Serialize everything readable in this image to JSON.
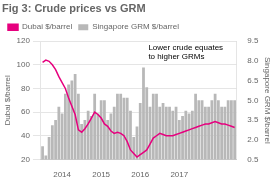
{
  "chart_data": {
    "type": "bar",
    "title": "Fig 3: Crude prices vs GRM",
    "ylabel": "Dubai $/barrel",
    "y2label": "Singapore GRM $/barrel",
    "categories": [
      null,
      null,
      null,
      null,
      null,
      null,
      "2014",
      null,
      null,
      null,
      null,
      null,
      null,
      null,
      null,
      null,
      null,
      null,
      "2015",
      null,
      null,
      null,
      null,
      null,
      null,
      null,
      null,
      null,
      null,
      null,
      "2016",
      null,
      null,
      null,
      null,
      null,
      null,
      null,
      null,
      null,
      null,
      null,
      "2017",
      null,
      null,
      null,
      null,
      null,
      null,
      null,
      null,
      null,
      null,
      null,
      null,
      null,
      null,
      null,
      null,
      null
    ],
    "series": [
      {
        "name": "Dubai $/barrel",
        "type": "line",
        "color": "#e6007e",
        "values": [
          102,
          104,
          103,
          100,
          96,
          90,
          85,
          80,
          72,
          65,
          58,
          45,
          43,
          46,
          50,
          55,
          60,
          58,
          55,
          50,
          48,
          44,
          42,
          43,
          42,
          40,
          35,
          28,
          25,
          22,
          24,
          26,
          28,
          33,
          38,
          40,
          42,
          41,
          40,
          40,
          40,
          41,
          42,
          43,
          44,
          45,
          46,
          47,
          48,
          49,
          50,
          50,
          51,
          52,
          51,
          50,
          50,
          49,
          48,
          47
        ]
      },
      {
        "name": "Singapore GRM $/barrel",
        "type": "bar",
        "color": "#b8b8b8",
        "axis": "y2",
        "values": [
          1.5,
          0.8,
          2.2,
          3.1,
          3.5,
          4.5,
          4.0,
          5.5,
          6.2,
          6.5,
          7.0,
          5.5,
          3.2,
          3.5,
          4.2,
          3.8,
          5.5,
          4.0,
          5.0,
          5.0,
          3.5,
          4.0,
          4.5,
          5.5,
          5.5,
          5.2,
          5.2,
          4.2,
          2.2,
          3.0,
          4.8,
          7.5,
          6.0,
          4.5,
          5.5,
          5.5,
          4.5,
          4.8,
          4.5,
          4.5,
          4.2,
          4.5,
          3.5,
          3.8,
          4.2,
          4.0,
          4.2,
          5.5,
          5.0,
          5.0,
          4.5,
          4.5,
          5.0,
          5.5,
          5.0,
          4.5,
          4.5,
          5.0,
          5.0,
          5.0
        ]
      }
    ],
    "ylim": [
      20,
      120
    ],
    "yticks": [
      20,
      40,
      60,
      80,
      100,
      120
    ],
    "y2lim": [
      0.5,
      9.5
    ],
    "y2ticks": [
      0.5,
      {
        "value": 2.0,
        "label": "2.0"
      },
      3.5,
      {
        "value": 5.0,
        "label": "5.0"
      },
      6.5,
      {
        "value": 8.0,
        "label": "8.0"
      },
      9.5
    ],
    "grid": true,
    "legend": "upper left",
    "annotation": "Lower crude equates\nto higher GRMs"
  }
}
